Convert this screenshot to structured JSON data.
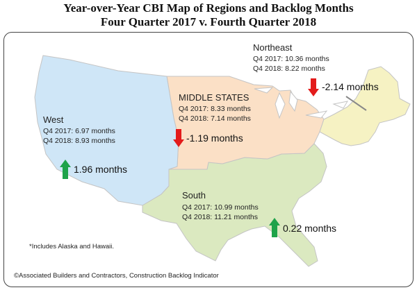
{
  "title": {
    "line1": "Year-over-Year CBI Map of Regions and Backlog Months",
    "line2": "Four Quarter 2017 v. Fourth Quarter 2018"
  },
  "colors": {
    "west": "#cfe6f7",
    "middle": "#fbe0c6",
    "south": "#dbe9c0",
    "northeast": "#f6f2c3",
    "up_arrow": "#1ea34a",
    "down_arrow": "#e31b1b"
  },
  "regions": {
    "northeast": {
      "name": "Northeast",
      "q4_2017": "Q4 2017:  10.36 months",
      "q4_2018": "Q4 2018:  8.22 months",
      "change": "-2.14 months",
      "direction": "down"
    },
    "middle": {
      "name": "MIDDLE STATES",
      "q4_2017": "Q4 2017:  8.33 months",
      "q4_2018": "Q4 2018:  7.14 months",
      "change": "-1.19 months",
      "direction": "down"
    },
    "west": {
      "name": "West",
      "q4_2017": "Q4 2017:  6.97 months",
      "q4_2018": "Q4 2018:  8.93 months",
      "change": "1.96 months",
      "direction": "up"
    },
    "south": {
      "name": "South",
      "q4_2017": "Q4 2017:  10.99 months",
      "q4_2018": "Q4 2018:  11.21 months",
      "change": "0.22 months",
      "direction": "up"
    }
  },
  "footnote": "*Includes Alaska and Hawaii.",
  "source": "©Associated Builders and Contractors, Construction Backlog Indicator"
}
